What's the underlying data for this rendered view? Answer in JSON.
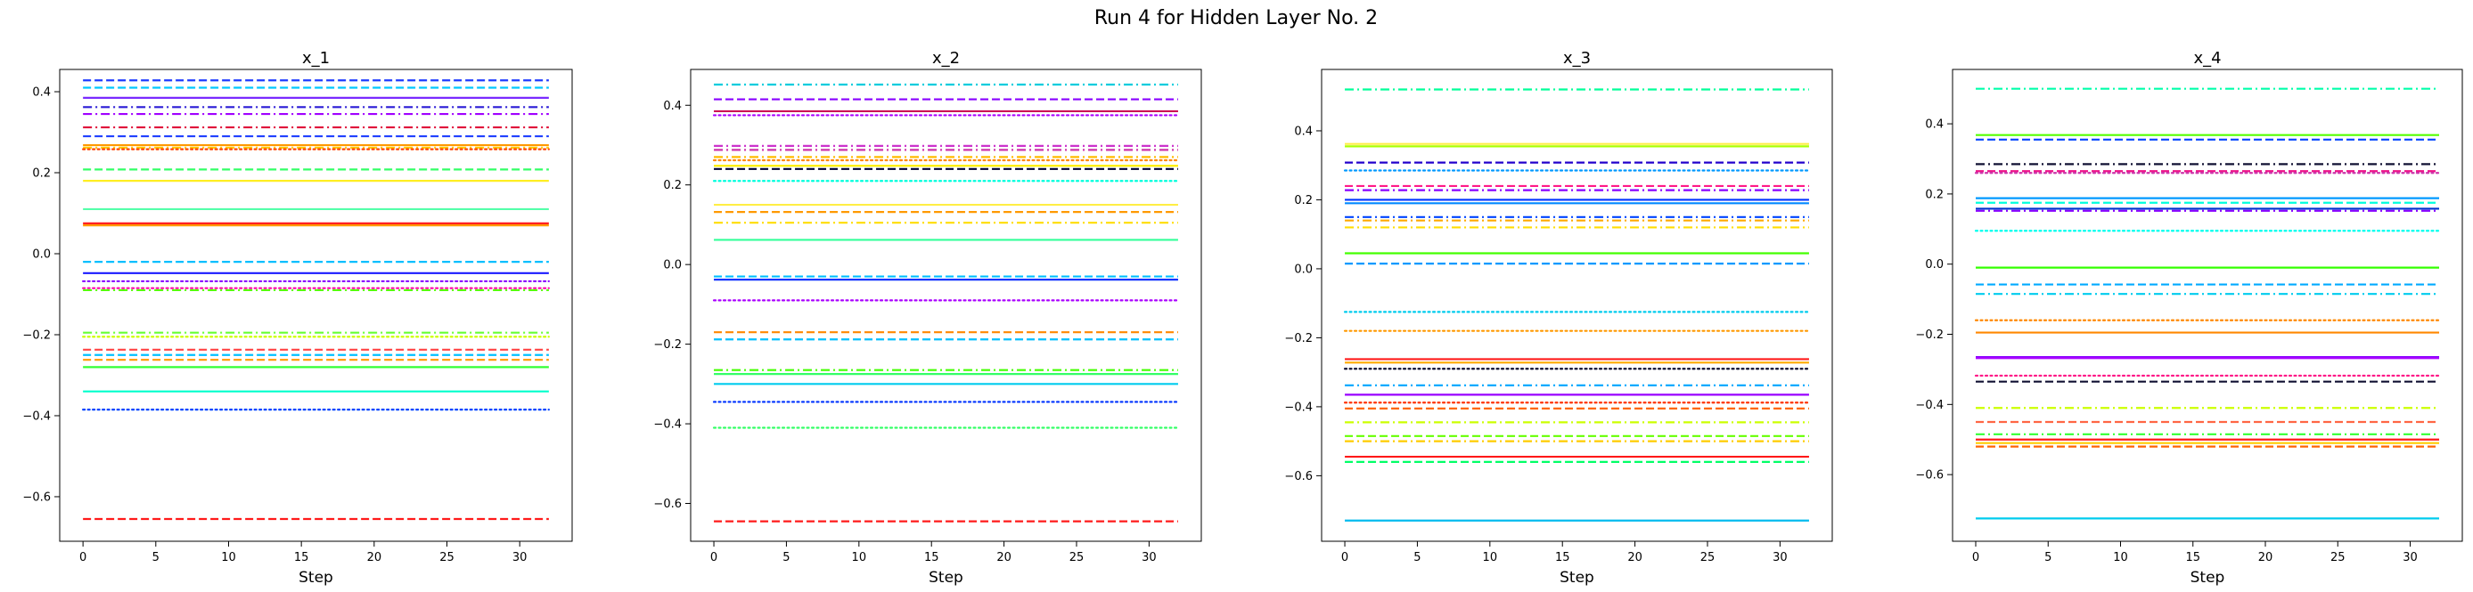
{
  "figure": {
    "title": "Run 4 for Hidden Layer No. 2"
  },
  "chart_data": [
    {
      "type": "line",
      "title": "x_1",
      "xlabel": "Step",
      "ylabel": "",
      "xlim": [
        -1.6,
        33.6
      ],
      "ylim": [
        -0.71,
        0.455
      ],
      "xticks": [
        0,
        5,
        10,
        15,
        20,
        25,
        30
      ],
      "yticks": [
        -0.6,
        -0.4,
        -0.2,
        0.0,
        0.2,
        0.4
      ],
      "ytick_labels": [
        "−0.6",
        "−0.4",
        "−0.2",
        "0.0",
        "0.2",
        "0.4"
      ],
      "x_range": [
        0,
        32
      ],
      "grid": false,
      "series": [
        {
          "value": 0.428,
          "color": "#1f3cff",
          "style": "dashed"
        },
        {
          "value": 0.41,
          "color": "#00c8ff",
          "style": "dashed"
        },
        {
          "value": 0.385,
          "color": "#7a2bff",
          "style": "solid"
        },
        {
          "value": 0.362,
          "color": "#2a1bd6",
          "style": "dashdot"
        },
        {
          "value": 0.345,
          "color": "#a000ff",
          "style": "dashdot"
        },
        {
          "value": 0.312,
          "color": "#e0103a",
          "style": "dashdot"
        },
        {
          "value": 0.29,
          "color": "#2040ff",
          "style": "dashed"
        },
        {
          "value": 0.268,
          "color": "#ff9900",
          "style": "solid"
        },
        {
          "value": 0.262,
          "color": "#ffcc00",
          "style": "dashdot"
        },
        {
          "value": 0.258,
          "color": "#ff4500",
          "style": "dotted"
        },
        {
          "value": 0.208,
          "color": "#33ff66",
          "style": "dashed"
        },
        {
          "value": 0.18,
          "color": "#ffee22",
          "style": "solid"
        },
        {
          "value": 0.11,
          "color": "#55ffaa",
          "style": "solid"
        },
        {
          "value": 0.075,
          "color": "#ff2020",
          "style": "solid"
        },
        {
          "value": 0.07,
          "color": "#ff9900",
          "style": "solid"
        },
        {
          "value": -0.02,
          "color": "#00bfff",
          "style": "dashed"
        },
        {
          "value": -0.048,
          "color": "#1a1aff",
          "style": "solid"
        },
        {
          "value": -0.068,
          "color": "#8a00ff",
          "style": "dotted"
        },
        {
          "value": -0.085,
          "color": "#ff00aa",
          "style": "dotted"
        },
        {
          "value": -0.09,
          "color": "#55ff00",
          "style": "dashdot"
        },
        {
          "value": -0.195,
          "color": "#66ff33",
          "style": "dashdot"
        },
        {
          "value": -0.205,
          "color": "#ccff00",
          "style": "dotted"
        },
        {
          "value": -0.237,
          "color": "#ff4444",
          "style": "dashed"
        },
        {
          "value": -0.25,
          "color": "#00c0ff",
          "style": "dashed"
        },
        {
          "value": -0.262,
          "color": "#ff9900",
          "style": "dashed"
        },
        {
          "value": -0.28,
          "color": "#33ff33",
          "style": "solid"
        },
        {
          "value": -0.34,
          "color": "#00ffcc",
          "style": "solid"
        },
        {
          "value": -0.385,
          "color": "#0044ff",
          "style": "dotted"
        },
        {
          "value": -0.655,
          "color": "#ff1a1a",
          "style": "dashed"
        }
      ]
    },
    {
      "type": "line",
      "title": "x_2",
      "xlabel": "Step",
      "ylabel": "",
      "xlim": [
        -1.6,
        33.6
      ],
      "ylim": [
        -0.695,
        0.49
      ],
      "xticks": [
        0,
        5,
        10,
        15,
        20,
        25,
        30
      ],
      "yticks": [
        -0.6,
        -0.4,
        -0.2,
        0.0,
        0.2,
        0.4
      ],
      "ytick_labels": [
        "−0.6",
        "−0.4",
        "−0.2",
        "0.0",
        "0.2",
        "0.4"
      ],
      "x_range": [
        0,
        32
      ],
      "grid": false,
      "series": [
        {
          "value": 0.452,
          "color": "#00ccdd",
          "style": "dashdot"
        },
        {
          "value": 0.415,
          "color": "#8800ff",
          "style": "dashed"
        },
        {
          "value": 0.385,
          "color": "#cc1155",
          "style": "solid"
        },
        {
          "value": 0.375,
          "color": "#aa00ff",
          "style": "dotted"
        },
        {
          "value": 0.298,
          "color": "#cc33cc",
          "style": "dashdot"
        },
        {
          "value": 0.288,
          "color": "#cc33aa",
          "style": "dashdot"
        },
        {
          "value": 0.27,
          "color": "#ffbb00",
          "style": "dashdot"
        },
        {
          "value": 0.262,
          "color": "#ff8800",
          "style": "dotted"
        },
        {
          "value": 0.248,
          "color": "#ffee00",
          "style": "solid"
        },
        {
          "value": 0.24,
          "color": "#000033",
          "style": "dashed"
        },
        {
          "value": 0.21,
          "color": "#00ffdd",
          "style": "dotted"
        },
        {
          "value": 0.15,
          "color": "#ffee44",
          "style": "solid"
        },
        {
          "value": 0.132,
          "color": "#ff9900",
          "style": "dashed"
        },
        {
          "value": 0.105,
          "color": "#ffdd00",
          "style": "dashdot"
        },
        {
          "value": 0.062,
          "color": "#33ff99",
          "style": "solid"
        },
        {
          "value": -0.03,
          "color": "#00bfff",
          "style": "dashed"
        },
        {
          "value": -0.038,
          "color": "#1133ff",
          "style": "solid"
        },
        {
          "value": -0.09,
          "color": "#aa00ff",
          "style": "dotted"
        },
        {
          "value": -0.17,
          "color": "#ff8800",
          "style": "dashed"
        },
        {
          "value": -0.188,
          "color": "#00bfff",
          "style": "dashed"
        },
        {
          "value": -0.265,
          "color": "#44ff00",
          "style": "dashdot"
        },
        {
          "value": -0.275,
          "color": "#33ff66",
          "style": "solid"
        },
        {
          "value": -0.3,
          "color": "#00ccee",
          "style": "solid"
        },
        {
          "value": -0.345,
          "color": "#0033ff",
          "style": "dotted"
        },
        {
          "value": -0.41,
          "color": "#33ff66",
          "style": "dotted"
        },
        {
          "value": -0.645,
          "color": "#ff1a1a",
          "style": "dashed"
        }
      ]
    },
    {
      "type": "line",
      "title": "x_3",
      "xlabel": "Step",
      "ylabel": "",
      "xlim": [
        -1.6,
        33.6
      ],
      "ylim": [
        -0.79,
        0.578
      ],
      "xticks": [
        0,
        5,
        10,
        15,
        20,
        25,
        30
      ],
      "yticks": [
        -0.6,
        -0.4,
        -0.2,
        0.0,
        0.2,
        0.4
      ],
      "ytick_labels": [
        "−0.6",
        "−0.4",
        "−0.2",
        "0.0",
        "0.2",
        "0.4"
      ],
      "x_range": [
        0,
        32
      ],
      "grid": false,
      "series": [
        {
          "value": 0.52,
          "color": "#00ff99",
          "style": "dashdot"
        },
        {
          "value": 0.362,
          "color": "#ffee44",
          "style": "solid"
        },
        {
          "value": 0.355,
          "color": "#aaff00",
          "style": "solid"
        },
        {
          "value": 0.308,
          "color": "#2200cc",
          "style": "dashed"
        },
        {
          "value": 0.285,
          "color": "#0099ff",
          "style": "dotted"
        },
        {
          "value": 0.24,
          "color": "#ff1a88",
          "style": "dashed"
        },
        {
          "value": 0.228,
          "color": "#8800ff",
          "style": "dashdot"
        },
        {
          "value": 0.2,
          "color": "#0033ff",
          "style": "solid"
        },
        {
          "value": 0.19,
          "color": "#0088ff",
          "style": "solid"
        },
        {
          "value": 0.15,
          "color": "#0044ff",
          "style": "dashdot"
        },
        {
          "value": 0.14,
          "color": "#ffaa00",
          "style": "dashdot"
        },
        {
          "value": 0.12,
          "color": "#ffdd00",
          "style": "dashdot"
        },
        {
          "value": 0.045,
          "color": "#44ff00",
          "style": "solid"
        },
        {
          "value": 0.015,
          "color": "#0099ff",
          "style": "dashed"
        },
        {
          "value": -0.125,
          "color": "#00ccee",
          "style": "dotted"
        },
        {
          "value": -0.18,
          "color": "#ff9900",
          "style": "dotted"
        },
        {
          "value": -0.262,
          "color": "#ff1a1a",
          "style": "solid"
        },
        {
          "value": -0.272,
          "color": "#ffaa00",
          "style": "solid"
        },
        {
          "value": -0.29,
          "color": "#111133",
          "style": "dotted"
        },
        {
          "value": -0.338,
          "color": "#00aaff",
          "style": "dashdot"
        },
        {
          "value": -0.365,
          "color": "#9900ff",
          "style": "solid"
        },
        {
          "value": -0.388,
          "color": "#ff3300",
          "style": "dotted"
        },
        {
          "value": -0.405,
          "color": "#ff6600",
          "style": "dashed"
        },
        {
          "value": -0.445,
          "color": "#ccff00",
          "style": "dashdot"
        },
        {
          "value": -0.485,
          "color": "#66ff00",
          "style": "dashed"
        },
        {
          "value": -0.5,
          "color": "#ffcc00",
          "style": "dashdot"
        },
        {
          "value": -0.545,
          "color": "#ff1a1a",
          "style": "solid"
        },
        {
          "value": -0.56,
          "color": "#00ff66",
          "style": "dashed"
        },
        {
          "value": -0.73,
          "color": "#00bbee",
          "style": "solid"
        }
      ]
    },
    {
      "type": "line",
      "title": "x_4",
      "xlabel": "Step",
      "ylabel": "",
      "xlim": [
        -1.6,
        33.6
      ],
      "ylim": [
        -0.79,
        0.555
      ],
      "xticks": [
        0,
        5,
        10,
        15,
        20,
        25,
        30
      ],
      "yticks": [
        -0.6,
        -0.4,
        -0.2,
        0.0,
        0.2,
        0.4
      ],
      "ytick_labels": [
        "−0.6",
        "−0.4",
        "−0.2",
        "0.0",
        "0.2",
        "0.4"
      ],
      "x_range": [
        0,
        32
      ],
      "grid": false,
      "series": [
        {
          "value": 0.5,
          "color": "#00ffaa",
          "style": "dashdot"
        },
        {
          "value": 0.368,
          "color": "#55ff00",
          "style": "solid"
        },
        {
          "value": 0.355,
          "color": "#0044ff",
          "style": "dashed"
        },
        {
          "value": 0.285,
          "color": "#111133",
          "style": "dashdot"
        },
        {
          "value": 0.265,
          "color": "#ee1188",
          "style": "dashed"
        },
        {
          "value": 0.26,
          "color": "#cc33aa",
          "style": "dotted"
        },
        {
          "value": 0.188,
          "color": "#0099ff",
          "style": "solid"
        },
        {
          "value": 0.175,
          "color": "#00ffdd",
          "style": "dashed"
        },
        {
          "value": 0.158,
          "color": "#0033cc",
          "style": "solid"
        },
        {
          "value": 0.152,
          "color": "#8800ff",
          "style": "dashdot"
        },
        {
          "value": 0.095,
          "color": "#00ffee",
          "style": "dotted"
        },
        {
          "value": -0.01,
          "color": "#33ff00",
          "style": "solid"
        },
        {
          "value": -0.058,
          "color": "#00aaff",
          "style": "dashed"
        },
        {
          "value": -0.085,
          "color": "#00ccee",
          "style": "dashdot"
        },
        {
          "value": -0.16,
          "color": "#ff8800",
          "style": "dotted"
        },
        {
          "value": -0.195,
          "color": "#ff8800",
          "style": "solid"
        },
        {
          "value": -0.265,
          "color": "#8800ff",
          "style": "solid"
        },
        {
          "value": -0.268,
          "color": "#aa00ff",
          "style": "solid"
        },
        {
          "value": -0.318,
          "color": "#ff1a88",
          "style": "dotted"
        },
        {
          "value": -0.335,
          "color": "#111133",
          "style": "dashed"
        },
        {
          "value": -0.41,
          "color": "#ccff00",
          "style": "dashdot"
        },
        {
          "value": -0.45,
          "color": "#ff6644",
          "style": "dashed"
        },
        {
          "value": -0.485,
          "color": "#33ff33",
          "style": "dashdot"
        },
        {
          "value": -0.5,
          "color": "#ff1a1a",
          "style": "solid"
        },
        {
          "value": -0.51,
          "color": "#ffcc00",
          "style": "solid"
        },
        {
          "value": -0.52,
          "color": "#ff6600",
          "style": "dashed"
        },
        {
          "value": -0.725,
          "color": "#00ccee",
          "style": "solid"
        }
      ]
    }
  ]
}
